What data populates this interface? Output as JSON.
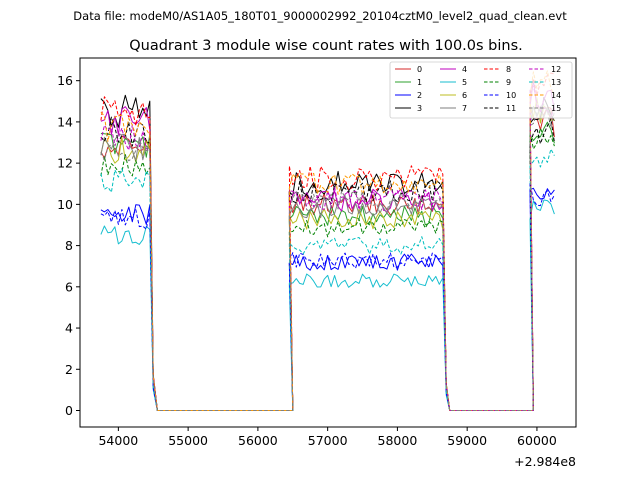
{
  "chart_data": {
    "type": "line",
    "suptitle": "Data file: modeM0/AS1A05_180T01_9000002992_20104cztM0_level2_quad_clean.evt",
    "title": "Quadrant 3 module wise count rates with 100.0s bins.",
    "xlabel": "",
    "ylabel": "",
    "x_offset_label": "+2.984e8",
    "xlim": [
      53450,
      60560
    ],
    "ylim": [
      -0.8,
      17.1
    ],
    "x_ticks": [
      54000,
      55000,
      56000,
      57000,
      58000,
      59000,
      60000
    ],
    "x_tick_labels": [
      "54000",
      "55000",
      "56000",
      "57000",
      "58000",
      "59000",
      "60000"
    ],
    "y_ticks": [
      0,
      2,
      4,
      6,
      8,
      10,
      12,
      14,
      16
    ],
    "y_tick_labels": [
      "0",
      "2",
      "4",
      "6",
      "8",
      "10",
      "12",
      "14",
      "16"
    ],
    "legend": {
      "position": "top-right",
      "columns": 4
    },
    "segments": [
      {
        "start": 53750,
        "end": 54450,
        "pre": [],
        "post": [
          54500,
          54560
        ]
      },
      {
        "start": 54600,
        "end": 56400,
        "pre": [],
        "post": []
      },
      {
        "start": 56450,
        "end": 58650,
        "pre": [
          56500
        ],
        "post": [
          58700
        ]
      },
      {
        "start": 58750,
        "end": 59850,
        "pre": [],
        "post": []
      },
      {
        "start": 59900,
        "end": 60250,
        "pre": [
          59950
        ],
        "post": []
      }
    ],
    "series": [
      {
        "name": "0",
        "color": "#d62728",
        "dash": "solid",
        "levels": [
          12.8,
          0,
          10.0,
          0,
          14.0
        ]
      },
      {
        "name": "1",
        "color": "#2ca02c",
        "dash": "solid",
        "levels": [
          13.0,
          0,
          9.5,
          0,
          13.5
        ]
      },
      {
        "name": "2",
        "color": "#0000ff",
        "dash": "solid",
        "levels": [
          9.5,
          0,
          7.2,
          0,
          10.4
        ]
      },
      {
        "name": "3",
        "color": "#000000",
        "dash": "solid",
        "levels": [
          14.5,
          0,
          11.0,
          0,
          14.5
        ]
      },
      {
        "name": "4",
        "color": "#bf00bf",
        "dash": "solid",
        "levels": [
          14.0,
          0,
          10.2,
          0,
          15.4
        ]
      },
      {
        "name": "5",
        "color": "#17becf",
        "dash": "solid",
        "levels": [
          8.5,
          0,
          6.3,
          0,
          9.8
        ]
      },
      {
        "name": "6",
        "color": "#bcbd22",
        "dash": "solid",
        "levels": [
          12.6,
          0,
          9.3,
          0,
          14.6
        ]
      },
      {
        "name": "7",
        "color": "#7f7f7f",
        "dash": "solid",
        "levels": [
          12.8,
          0,
          9.9,
          0,
          14.4
        ]
      },
      {
        "name": "8",
        "color": "#ff0000",
        "dash": "dashed",
        "levels": [
          14.5,
          0,
          11.3,
          0,
          15.6
        ]
      },
      {
        "name": "9",
        "color": "#008000",
        "dash": "dashed",
        "levels": [
          12.0,
          0,
          8.9,
          0,
          13.0
        ]
      },
      {
        "name": "10",
        "color": "#0000ff",
        "dash": "dashed",
        "levels": [
          9.3,
          0,
          7.3,
          0,
          10.5
        ]
      },
      {
        "name": "11",
        "color": "#000000",
        "dash": "dashed",
        "levels": [
          13.5,
          0,
          10.6,
          0,
          13.6
        ]
      },
      {
        "name": "12",
        "color": "#bf00bf",
        "dash": "dashed",
        "levels": [
          13.2,
          0,
          10.3,
          0,
          15.0
        ]
      },
      {
        "name": "13",
        "color": "#00bfbf",
        "dash": "dashed",
        "levels": [
          11.2,
          0,
          8.0,
          0,
          12.4
        ]
      },
      {
        "name": "14",
        "color": "#ff9900",
        "dash": "dashed",
        "levels": [
          13.8,
          0,
          11.0,
          0,
          16.0
        ]
      },
      {
        "name": "15",
        "color": "#808080",
        "dash": "dashed",
        "levels": [
          12.6,
          0,
          10.1,
          0,
          14.2
        ]
      }
    ]
  }
}
